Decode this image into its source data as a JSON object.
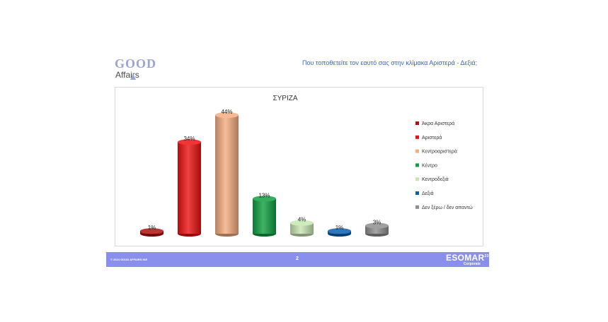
{
  "logo": {
    "word1": "GOOD",
    "word2": "Affairs"
  },
  "slide_title": "Που τοποθετείτε τον εαυτό σας στην κλίμακα Αριστερά - Δεξιά;",
  "footer": {
    "copyright": "© 2024 GOOD AFFAIRS IKE",
    "page_number": "2",
    "esomar_main": "ESOMAR",
    "esomar_sup": "23",
    "esomar_sub": "Corporate"
  },
  "chart_data": {
    "type": "bar",
    "title": "ΣΥΡΙΖΑ",
    "categories": [
      "Άκρα Αριστερά",
      "Αριστερά",
      "Κεντροαριστερά",
      "Κέντρο",
      "Κεντροδεξιά",
      "Δεξιά",
      "Δεν ξέρω / δεν απαντώ"
    ],
    "values": [
      1,
      34,
      44,
      13,
      4,
      1,
      3
    ],
    "value_labels": [
      "1%",
      "34%",
      "44%",
      "13%",
      "4%",
      "1%",
      "3%"
    ],
    "colors": [
      "#b01010",
      "#ee1111",
      "#f5ad80",
      "#10a040",
      "#c8e6b4",
      "#0a5fb0",
      "#8f8f8f"
    ],
    "legend": "right",
    "grid": false
  }
}
